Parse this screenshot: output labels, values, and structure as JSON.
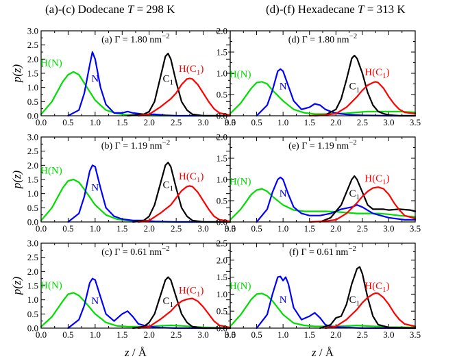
{
  "column_titles": [
    {
      "prefix": "(a)-(c) Dodecane ",
      "var": "T",
      "suffix": " = 298 K"
    },
    {
      "prefix": "(d)-(f) Hexadecane ",
      "var": "T",
      "suffix": " = 313 K"
    }
  ],
  "axis_labels": {
    "y": "p(z)",
    "x_var": "z",
    "x_unit": " / Å"
  },
  "colors": {
    "H(N)": "#00dd00",
    "N": "#0000ff",
    "C1": "#000000",
    "H(C1)": "#ff0000"
  },
  "chart_data": [
    {
      "type": "line",
      "panel": "(a)",
      "title": "(a) Γ = 1.80 nm",
      "xlim": [
        0,
        3.5
      ],
      "ylim": [
        0,
        3.0
      ],
      "xticks": [
        "0.0",
        "0.5",
        "1.0",
        "1.5",
        "2.0",
        "2.5",
        "3.0",
        "3.5"
      ],
      "yticks": [
        "0.0",
        "0.5",
        "1.0",
        "1.5",
        "2.0",
        "2.5",
        "3.0"
      ],
      "series": [
        {
          "name": "H(N)",
          "x": [
            0,
            0.2,
            0.4,
            0.5,
            0.6,
            0.7,
            0.8,
            1.0,
            1.2,
            1.4,
            1.6,
            1.8,
            2.0,
            2.2,
            2.5,
            3.0,
            3.5
          ],
          "y": [
            0.05,
            0.5,
            1.2,
            1.45,
            1.55,
            1.45,
            1.15,
            0.55,
            0.2,
            0.08,
            0.03,
            0.02,
            0.01,
            0,
            0,
            0,
            0
          ]
        },
        {
          "name": "N",
          "x": [
            0.5,
            0.7,
            0.8,
            0.9,
            0.95,
            1.0,
            1.1,
            1.2,
            1.35,
            1.5,
            1.6,
            1.7,
            1.9,
            2.1,
            2.3,
            2.5,
            3.0,
            3.5
          ],
          "y": [
            0,
            0.2,
            0.8,
            1.8,
            2.25,
            2.0,
            1.0,
            0.4,
            0.1,
            0.1,
            0.15,
            0.1,
            0.05,
            0.05,
            0.02,
            0,
            0,
            0
          ]
        },
        {
          "name": "C1",
          "x": [
            1.6,
            1.9,
            2.0,
            2.1,
            2.2,
            2.3,
            2.35,
            2.4,
            2.5,
            2.6,
            2.7,
            2.8,
            3.0,
            3.5
          ],
          "y": [
            0,
            0.05,
            0.15,
            0.5,
            1.3,
            2.1,
            2.2,
            2.0,
            1.2,
            0.5,
            0.2,
            0.05,
            0,
            0
          ]
        },
        {
          "name": "H(C1)",
          "x": [
            1.8,
            2.0,
            2.2,
            2.4,
            2.5,
            2.6,
            2.7,
            2.75,
            2.8,
            2.9,
            3.0,
            3.1,
            3.2,
            3.3,
            3.5
          ],
          "y": [
            0,
            0.05,
            0.3,
            0.6,
            0.8,
            1.1,
            1.3,
            1.32,
            1.3,
            1.1,
            0.8,
            0.5,
            0.25,
            0.1,
            0.02
          ]
        }
      ]
    },
    {
      "type": "line",
      "panel": "(b)",
      "title": "(b) Γ = 1.19 nm",
      "xlim": [
        0,
        3.5
      ],
      "ylim": [
        0,
        3.0
      ],
      "xticks": [
        "0.0",
        "0.5",
        "1.0",
        "1.5",
        "2.0",
        "2.5",
        "3.0",
        "3.5"
      ],
      "yticks": [
        "0.0",
        "0.5",
        "1.0",
        "1.5",
        "2.0",
        "2.5",
        "3.0"
      ],
      "series": [
        {
          "name": "H(N)",
          "x": [
            0,
            0.2,
            0.4,
            0.5,
            0.6,
            0.7,
            0.8,
            1.0,
            1.2,
            1.4,
            1.6,
            1.8,
            2.0,
            2.5,
            3.5
          ],
          "y": [
            0.05,
            0.5,
            1.2,
            1.45,
            1.5,
            1.4,
            1.15,
            0.6,
            0.25,
            0.1,
            0.05,
            0.02,
            0.01,
            0,
            0
          ]
        },
        {
          "name": "N",
          "x": [
            0.5,
            0.7,
            0.8,
            0.9,
            0.95,
            1.0,
            1.1,
            1.2,
            1.35,
            1.5,
            1.7,
            1.9,
            2.1,
            2.5,
            3.5
          ],
          "y": [
            0,
            0.3,
            0.9,
            1.8,
            2.0,
            1.95,
            1.2,
            0.5,
            0.2,
            0.1,
            0.05,
            0.05,
            0.02,
            0,
            0
          ]
        },
        {
          "name": "C1",
          "x": [
            1.7,
            1.9,
            2.0,
            2.1,
            2.2,
            2.3,
            2.35,
            2.4,
            2.5,
            2.6,
            2.7,
            2.8,
            3.0,
            3.5
          ],
          "y": [
            0,
            0.05,
            0.2,
            0.6,
            1.3,
            2.0,
            2.1,
            1.95,
            1.2,
            0.5,
            0.2,
            0.05,
            0,
            0
          ]
        },
        {
          "name": "H(C1)",
          "x": [
            1.8,
            2.0,
            2.2,
            2.4,
            2.5,
            2.6,
            2.7,
            2.75,
            2.8,
            2.9,
            3.0,
            3.1,
            3.2,
            3.3,
            3.5
          ],
          "y": [
            0,
            0.05,
            0.3,
            0.6,
            0.85,
            1.1,
            1.25,
            1.27,
            1.25,
            1.05,
            0.75,
            0.45,
            0.2,
            0.08,
            0.02
          ]
        }
      ]
    },
    {
      "type": "line",
      "panel": "(c)",
      "title": "(c) Γ = 0.61 nm",
      "xlim": [
        0,
        3.5
      ],
      "ylim": [
        0,
        3.0
      ],
      "xticks": [
        "0.0",
        "0.5",
        "1.0",
        "1.5",
        "2.0",
        "2.5",
        "3.0",
        "3.5"
      ],
      "yticks": [
        "0.0",
        "0.5",
        "1.0",
        "1.5",
        "2.0",
        "2.5",
        "3.0"
      ],
      "series": [
        {
          "name": "H(N)",
          "x": [
            0,
            0.2,
            0.4,
            0.5,
            0.6,
            0.7,
            0.8,
            1.0,
            1.2,
            1.4,
            1.6,
            1.8,
            2.0,
            2.2,
            2.4,
            2.6,
            3.0,
            3.5
          ],
          "y": [
            0.05,
            0.4,
            0.95,
            1.2,
            1.25,
            1.15,
            0.95,
            0.5,
            0.2,
            0.08,
            0.05,
            0.05,
            0.05,
            0.08,
            0.1,
            0.08,
            0.03,
            0
          ]
        },
        {
          "name": "N",
          "x": [
            0.5,
            0.7,
            0.8,
            0.9,
            0.95,
            1.0,
            1.1,
            1.2,
            1.35,
            1.5,
            1.6,
            1.7,
            1.8,
            1.9,
            2.0,
            2.2,
            2.5,
            3.5
          ],
          "y": [
            0,
            0.3,
            0.8,
            1.6,
            1.75,
            1.7,
            1.1,
            0.5,
            0.25,
            0.5,
            0.6,
            0.4,
            0.15,
            0.1,
            0.05,
            0.02,
            0,
            0
          ]
        },
        {
          "name": "C1",
          "x": [
            1.7,
            1.9,
            2.0,
            2.1,
            2.2,
            2.3,
            2.35,
            2.4,
            2.5,
            2.6,
            2.7,
            2.8,
            3.0,
            3.5
          ],
          "y": [
            0,
            0.05,
            0.2,
            0.5,
            1.1,
            1.7,
            1.8,
            1.7,
            1.1,
            0.5,
            0.2,
            0.05,
            0,
            0
          ]
        },
        {
          "name": "H(C1)",
          "x": [
            1.8,
            2.0,
            2.2,
            2.4,
            2.5,
            2.6,
            2.7,
            2.8,
            2.9,
            3.0,
            3.1,
            3.2,
            3.3,
            3.5
          ],
          "y": [
            0,
            0.05,
            0.3,
            0.6,
            0.8,
            0.95,
            1.02,
            1.05,
            0.95,
            0.75,
            0.5,
            0.25,
            0.1,
            0.02
          ]
        }
      ]
    },
    {
      "type": "line",
      "panel": "(d)",
      "title": "(d) Γ = 1.80 nm",
      "xlim": [
        0,
        3.5
      ],
      "ylim": [
        0,
        2.0
      ],
      "xticks": [
        "0.0",
        "0.5",
        "1.0",
        "1.5",
        "2.0",
        "2.5",
        "3.0",
        "3.5"
      ],
      "yticks": [
        "0.0",
        "0.5",
        "1.0",
        "1.5",
        "2.0"
      ],
      "series": [
        {
          "name": "H(N)",
          "x": [
            0,
            0.2,
            0.4,
            0.5,
            0.6,
            0.7,
            0.8,
            1.0,
            1.2,
            1.4,
            1.6,
            1.8,
            2.0,
            2.2,
            2.4,
            2.6,
            2.8,
            3.0,
            3.2,
            3.5
          ],
          "y": [
            0.05,
            0.3,
            0.65,
            0.78,
            0.8,
            0.75,
            0.6,
            0.35,
            0.15,
            0.07,
            0.04,
            0.04,
            0.05,
            0.06,
            0.08,
            0.1,
            0.1,
            0.1,
            0.1,
            0.08
          ]
        },
        {
          "name": "N",
          "x": [
            0.5,
            0.7,
            0.8,
            0.9,
            0.95,
            1.0,
            1.1,
            1.2,
            1.35,
            1.5,
            1.6,
            1.7,
            1.8,
            1.9,
            2.0,
            2.2,
            2.5,
            3.0,
            3.5
          ],
          "y": [
            0,
            0.25,
            0.6,
            1.05,
            1.1,
            1.05,
            0.7,
            0.35,
            0.15,
            0.2,
            0.28,
            0.25,
            0.15,
            0.1,
            0.06,
            0.03,
            0.01,
            0,
            0
          ]
        },
        {
          "name": "C1",
          "x": [
            1.6,
            1.8,
            2.0,
            2.1,
            2.2,
            2.3,
            2.35,
            2.4,
            2.5,
            2.6,
            2.7,
            2.8,
            2.9,
            3.0,
            3.2,
            3.5
          ],
          "y": [
            0,
            0.02,
            0.15,
            0.4,
            0.85,
            1.35,
            1.42,
            1.35,
            1.0,
            0.55,
            0.25,
            0.1,
            0.05,
            0.02,
            0,
            0
          ]
        },
        {
          "name": "H(C1)",
          "x": [
            1.5,
            1.8,
            2.0,
            2.2,
            2.4,
            2.5,
            2.6,
            2.7,
            2.75,
            2.8,
            2.9,
            3.0,
            3.1,
            3.2,
            3.3,
            3.5
          ],
          "y": [
            0,
            0.02,
            0.05,
            0.2,
            0.45,
            0.6,
            0.72,
            0.78,
            0.8,
            0.78,
            0.65,
            0.45,
            0.28,
            0.15,
            0.08,
            0.05
          ]
        }
      ]
    },
    {
      "type": "line",
      "panel": "(e)",
      "title": "(e) Γ = 1.19 nm",
      "xlim": [
        0,
        3.5
      ],
      "ylim": [
        0,
        2.0
      ],
      "xticks": [
        "0.0",
        "0.5",
        "1.0",
        "1.5",
        "2.0",
        "2.5",
        "3.0",
        "3.5"
      ],
      "yticks": [
        "0.0",
        "0.5",
        "1.0",
        "1.5",
        "2.0"
      ],
      "series": [
        {
          "name": "H(N)",
          "x": [
            0,
            0.2,
            0.4,
            0.5,
            0.6,
            0.7,
            0.8,
            1.0,
            1.2,
            1.4,
            1.6,
            1.8,
            2.0,
            2.2,
            2.4,
            2.6,
            2.8,
            3.0,
            3.2,
            3.5
          ],
          "y": [
            0.05,
            0.3,
            0.65,
            0.75,
            0.78,
            0.72,
            0.6,
            0.4,
            0.28,
            0.25,
            0.25,
            0.25,
            0.24,
            0.22,
            0.2,
            0.2,
            0.2,
            0.18,
            0.15,
            0.12
          ]
        },
        {
          "name": "N",
          "x": [
            0.5,
            0.7,
            0.8,
            0.9,
            0.95,
            1.0,
            1.1,
            1.2,
            1.35,
            1.5,
            1.7,
            1.9,
            2.1,
            2.3,
            2.4,
            2.5,
            2.7,
            3.0,
            3.3,
            3.5
          ],
          "y": [
            0,
            0.3,
            0.7,
            1.0,
            1.05,
            1.0,
            0.65,
            0.35,
            0.2,
            0.15,
            0.15,
            0.2,
            0.3,
            0.35,
            0.4,
            0.35,
            0.2,
            0.1,
            0.05,
            0.05
          ]
        },
        {
          "name": "C1",
          "x": [
            1.7,
            1.9,
            2.0,
            2.1,
            2.2,
            2.3,
            2.35,
            2.4,
            2.5,
            2.6,
            2.7,
            2.8,
            2.9,
            3.0,
            3.2,
            3.4,
            3.5
          ],
          "y": [
            0,
            0.1,
            0.25,
            0.4,
            0.7,
            1.0,
            1.08,
            1.0,
            0.7,
            0.4,
            0.3,
            0.3,
            0.3,
            0.28,
            0.3,
            0.28,
            0.25
          ]
        },
        {
          "name": "H(C1)",
          "x": [
            1.5,
            1.8,
            2.0,
            2.2,
            2.4,
            2.5,
            2.6,
            2.7,
            2.8,
            2.9,
            3.0,
            3.1,
            3.2,
            3.3,
            3.5
          ],
          "y": [
            0,
            0.02,
            0.05,
            0.2,
            0.45,
            0.6,
            0.72,
            0.8,
            0.82,
            0.78,
            0.65,
            0.45,
            0.28,
            0.15,
            0.08
          ]
        }
      ]
    },
    {
      "type": "line",
      "panel": "(f)",
      "title": "(f) Γ = 0.61 nm",
      "xlim": [
        0,
        3.5
      ],
      "ylim": [
        0,
        2.5
      ],
      "xticks": [
        "0.0",
        "0.5",
        "1.0",
        "1.5",
        "2.0",
        "2.5",
        "3.0",
        "3.5"
      ],
      "yticks": [
        "0.0",
        "0.5",
        "1.0",
        "1.5",
        "2.0",
        "2.5"
      ],
      "series": [
        {
          "name": "H(N)",
          "x": [
            0,
            0.2,
            0.4,
            0.5,
            0.6,
            0.7,
            0.8,
            1.0,
            1.2,
            1.4,
            1.6,
            1.8,
            2.0,
            2.2,
            2.4,
            2.6,
            3.0,
            3.5
          ],
          "y": [
            0.05,
            0.4,
            0.85,
            1.0,
            1.02,
            0.95,
            0.8,
            0.4,
            0.15,
            0.08,
            0.05,
            0.05,
            0.05,
            0.06,
            0.08,
            0.06,
            0.03,
            0.02
          ]
        },
        {
          "name": "N",
          "x": [
            0.5,
            0.7,
            0.8,
            0.9,
            0.95,
            1.0,
            1.05,
            1.1,
            1.2,
            1.35,
            1.5,
            1.6,
            1.7,
            1.8,
            1.9,
            2.0,
            2.2,
            2.5,
            3.5
          ],
          "y": [
            0,
            0.4,
            1.0,
            1.5,
            1.52,
            1.4,
            1.5,
            1.3,
            0.6,
            0.25,
            0.35,
            0.45,
            0.3,
            0.1,
            0.05,
            0.03,
            0.02,
            0,
            0
          ]
        },
        {
          "name": "C1",
          "x": [
            1.7,
            1.9,
            2.0,
            2.1,
            2.2,
            2.3,
            2.4,
            2.45,
            2.5,
            2.6,
            2.7,
            2.8,
            3.0,
            3.5
          ],
          "y": [
            0,
            0.1,
            0.3,
            0.35,
            0.7,
            1.3,
            1.75,
            1.8,
            1.6,
            0.9,
            0.35,
            0.1,
            0.02,
            0
          ]
        },
        {
          "name": "H(C1)",
          "x": [
            1.8,
            2.0,
            2.2,
            2.4,
            2.5,
            2.6,
            2.7,
            2.75,
            2.8,
            2.9,
            3.0,
            3.1,
            3.2,
            3.3,
            3.5
          ],
          "y": [
            0,
            0.05,
            0.25,
            0.55,
            0.75,
            0.9,
            1.0,
            1.03,
            1.02,
            0.9,
            0.7,
            0.45,
            0.25,
            0.12,
            0.05
          ]
        }
      ]
    }
  ]
}
